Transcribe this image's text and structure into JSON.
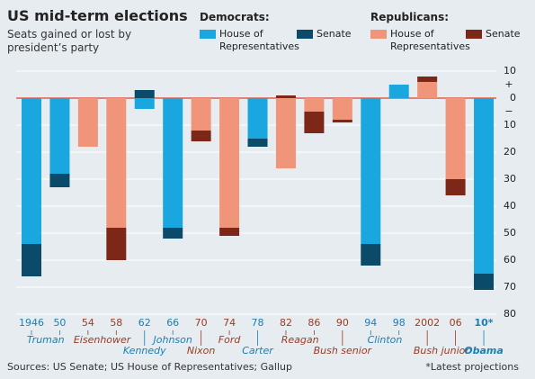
{
  "chart_data": {
    "type": "bar",
    "title": "US mid-term elections",
    "subtitle": "Seats gained or lost by president’s party",
    "legend_groups": [
      "Democrats:",
      "Republicans:"
    ],
    "categories": [
      "1946",
      "50",
      "54",
      "58",
      "62",
      "66",
      "70",
      "74",
      "78",
      "82",
      "86",
      "90",
      "94",
      "98",
      "2002",
      "06",
      "10*"
    ],
    "series": [
      {
        "name": "House of Representatives",
        "color": "#1aa7e0",
        "values": [
          -54,
          -28,
          null,
          null,
          -4,
          -48,
          null,
          null,
          -15,
          null,
          null,
          null,
          -54,
          5,
          null,
          null,
          -65
        ]
      },
      {
        "name": "Senate",
        "color": "#0b4a68",
        "values": [
          -12,
          -5,
          null,
          null,
          3,
          -4,
          null,
          null,
          -3,
          null,
          null,
          null,
          -8,
          0,
          null,
          null,
          -6
        ]
      },
      {
        "name": "House of Representatives",
        "color": "#f0947a",
        "values": [
          null,
          null,
          -18,
          -48,
          null,
          null,
          -12,
          -48,
          null,
          -26,
          -5,
          -8,
          null,
          null,
          6,
          -30,
          null
        ]
      },
      {
        "name": "Senate",
        "color": "#7d2718",
        "values": [
          null,
          null,
          0,
          -12,
          null,
          null,
          -4,
          -3,
          null,
          1,
          -8,
          -1,
          null,
          null,
          2,
          -6,
          null
        ]
      }
    ],
    "presidents": [
      "Truman",
      "Eisenhower",
      "Kennedy",
      "Johnson",
      "Nixon",
      "Ford",
      "Carter",
      "Reagan",
      "Bush senior",
      "Clinton",
      "Bush junior",
      "Obama"
    ],
    "ylim": [
      -80,
      12
    ],
    "yticks": [
      10,
      0,
      {
        "value": -10,
        "label": "10"
      },
      {
        "value": -20,
        "label": "20"
      },
      {
        "value": -30,
        "label": "30"
      },
      {
        "value": -40,
        "label": "40"
      },
      {
        "value": -50,
        "label": "50"
      },
      {
        "value": -60,
        "label": "60"
      },
      {
        "value": -70,
        "label": "70"
      },
      {
        "value": -80,
        "label": "80"
      }
    ],
    "y_signs": {
      "plus": "+",
      "minus": "−"
    },
    "grid": true,
    "source": "Sources: US Senate; US House of Representatives; Gallup",
    "note": "*Latest projections"
  }
}
